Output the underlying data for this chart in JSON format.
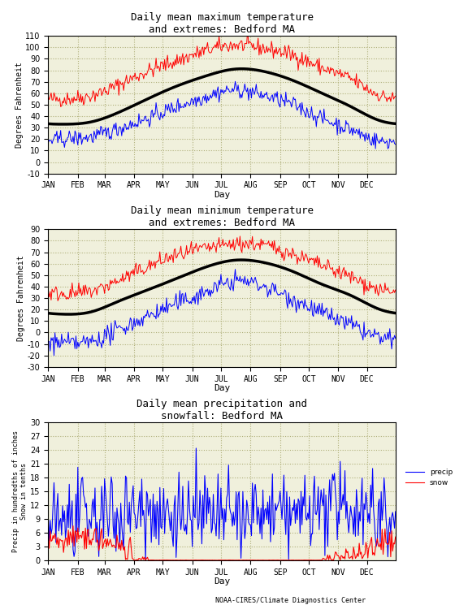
{
  "title1": "Daily mean maximum temperature\nand extremes: Bedford MA",
  "title2": "Daily mean minimum temperature\nand extremes: Bedford MA",
  "title3": "Daily mean precipitation and\nsnowfall: Bedford MA",
  "ylabel1": "Degrees Fahrenheit",
  "ylabel2": "Degrees Fahrenheit",
  "ylabel3": "Precip in hundredths of inches\nSnow in tenths",
  "xlabel": "Day",
  "months": [
    "JAN",
    "FEB",
    "MAR",
    "APR",
    "MAY",
    "JUN",
    "JUL",
    "AUG",
    "SEP",
    "OCT",
    "NOV",
    "DEC"
  ],
  "bg_color": "#f0f0dc",
  "grid_color": "#b0b07a",
  "mean_max": [
    33,
    35,
    43,
    55,
    66,
    75,
    81,
    79,
    71,
    60,
    48,
    36
  ],
  "mean_min": [
    16,
    18,
    27,
    37,
    47,
    57,
    63,
    61,
    53,
    42,
    32,
    20
  ],
  "rec_high_max": [
    55,
    58,
    67,
    79,
    88,
    97,
    102,
    99,
    93,
    82,
    72,
    58
  ],
  "rec_low_max": [
    20,
    22,
    29,
    38,
    48,
    57,
    63,
    58,
    50,
    38,
    28,
    18
  ],
  "rec_high_min": [
    34,
    36,
    45,
    57,
    67,
    73,
    77,
    76,
    68,
    58,
    48,
    37
  ],
  "rec_low_min": [
    -9,
    -8,
    2,
    14,
    25,
    35,
    45,
    40,
    29,
    17,
    6,
    -5
  ],
  "footnote": "NOAA-CIRES/Climate Diagnostics Center"
}
